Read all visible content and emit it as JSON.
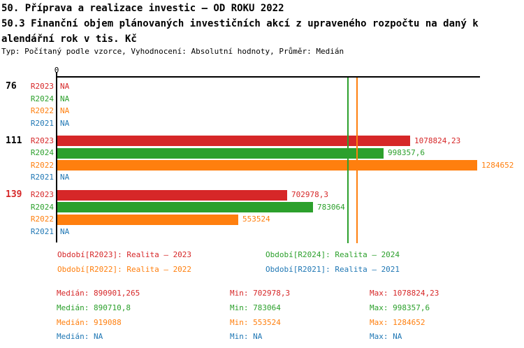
{
  "header": {
    "title": "50. Příprava a realizace investic – OD ROKU 2022",
    "subtitle_line1": "50.3 Finanční objem plánovaných investičních akcí z upraveného rozpočtu na daný k",
    "subtitle_line2": "alendářní rok v tis. Kč",
    "meta": "Typ: Počítaný podle vzorce, Vyhodnocení: Absolutní hodnoty, Průměr: Medián"
  },
  "colors": {
    "R2023": "#d62728",
    "R2024": "#2ca02c",
    "R2022": "#ff7f0e",
    "R2021": "#1f77b4",
    "group_default": "#000000",
    "group_alert": "#d62728",
    "axis": "#000000"
  },
  "chart_data": {
    "type": "bar",
    "orientation": "horizontal",
    "axis_tick_label": "0",
    "na_label": "NA",
    "xlim": [
      0,
      1295000
    ],
    "series_order": [
      "R2023",
      "R2024",
      "R2022",
      "R2021"
    ],
    "groups": [
      {
        "label": "76",
        "label_style": "default",
        "rows": [
          {
            "series": "R2023",
            "value": null,
            "display": "NA"
          },
          {
            "series": "R2024",
            "value": null,
            "display": "NA"
          },
          {
            "series": "R2022",
            "value": null,
            "display": "NA"
          },
          {
            "series": "R2021",
            "value": null,
            "display": "NA"
          }
        ]
      },
      {
        "label": "111",
        "label_style": "default",
        "rows": [
          {
            "series": "R2023",
            "value": 1078824.23,
            "display": "1078824,23"
          },
          {
            "series": "R2024",
            "value": 998357.6,
            "display": "998357,6"
          },
          {
            "series": "R2022",
            "value": 1284652,
            "display": "1284652"
          },
          {
            "series": "R2021",
            "value": null,
            "display": "NA"
          }
        ]
      },
      {
        "label": "139",
        "label_style": "alert",
        "rows": [
          {
            "series": "R2023",
            "value": 702978.3,
            "display": "702978,3"
          },
          {
            "series": "R2024",
            "value": 783064,
            "display": "783064"
          },
          {
            "series": "R2022",
            "value": 553524,
            "display": "553524"
          },
          {
            "series": "R2021",
            "value": null,
            "display": "NA"
          }
        ]
      }
    ],
    "median_lines": [
      {
        "series": "R2023",
        "value": 890901.265
      },
      {
        "series": "R2024",
        "value": 890710.8
      },
      {
        "series": "R2022",
        "value": 919088
      }
    ]
  },
  "legend": {
    "items": [
      {
        "series": "R2023",
        "label": "Období[R2023]: Realita – 2023"
      },
      {
        "series": "R2024",
        "label": "Období[R2024]: Realita – 2024"
      },
      {
        "series": "R2022",
        "label": "Období[R2022]: Realita – 2022"
      },
      {
        "series": "R2021",
        "label": "Období[R2021]: Realita – 2021"
      }
    ]
  },
  "stats": {
    "labels": {
      "median": "Medián:",
      "min": "Min:",
      "max": "Max:"
    },
    "rows": [
      {
        "series": "R2023",
        "median": "890901,265",
        "min": "702978,3",
        "max": "1078824,23"
      },
      {
        "series": "R2024",
        "median": "890710,8",
        "min": "783064",
        "max": "998357,6"
      },
      {
        "series": "R2022",
        "median": "919088",
        "min": "553524",
        "max": "1284652"
      },
      {
        "series": "R2021",
        "median": "NA",
        "min": "NA",
        "max": "NA"
      }
    ]
  }
}
